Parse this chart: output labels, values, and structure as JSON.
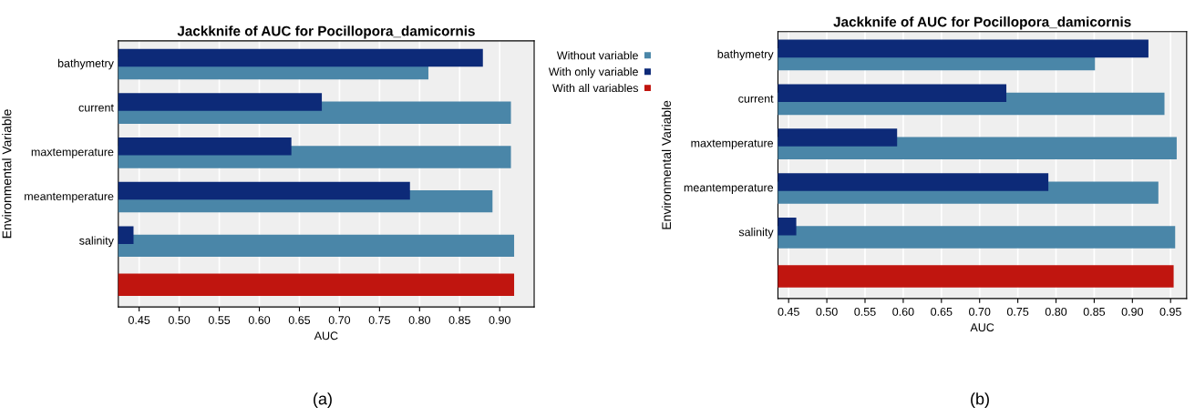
{
  "chart_data": [
    {
      "type": "bar",
      "orientation": "horizontal",
      "title": "Jackknife of AUC for Pocillopora_damicornis",
      "xlabel": "AUC",
      "ylabel": "Environmental Variable",
      "categories": [
        "bathymetry",
        "current",
        "maxtemperature",
        "meantemperature",
        "salinity",
        null
      ],
      "series": [
        {
          "name": "Without variable",
          "color": "#4a86a8",
          "values": [
            0.811,
            0.914,
            0.914,
            0.891,
            0.918,
            null
          ]
        },
        {
          "name": "With only variable",
          "color": "#0d2a78",
          "values": [
            0.879,
            0.678,
            0.64,
            0.788,
            0.443,
            null
          ]
        },
        {
          "name": "With all variables",
          "color": "#c0150f",
          "values": [
            null,
            null,
            null,
            null,
            null,
            0.918
          ]
        }
      ],
      "xlim": [
        0.424,
        0.943
      ],
      "xticks": [
        {
          "value": 0.45,
          "label": "0.45"
        },
        {
          "value": 0.5,
          "label": "0.50"
        },
        {
          "value": 0.55,
          "label": "0.55"
        },
        {
          "value": 0.6,
          "label": "0.60"
        },
        {
          "value": 0.65,
          "label": "0.65"
        },
        {
          "value": 0.7,
          "label": "0.70"
        },
        {
          "value": 0.75,
          "label": "0.75"
        },
        {
          "value": 0.8,
          "label": "0.80"
        },
        {
          "value": 0.85,
          "label": "0.85"
        },
        {
          "value": 0.9,
          "label": "0.90"
        }
      ],
      "grid": "x",
      "legend": "top right",
      "annotations": [
        "(a)"
      ]
    },
    {
      "type": "bar",
      "orientation": "horizontal",
      "title": "Jackknife of AUC for Pocillopora_damicornis",
      "xlabel": "AUC",
      "ylabel": "Environmental Variable",
      "categories": [
        "bathymetry",
        "current",
        "maxtemperature",
        "meantemperature",
        "salinity",
        null
      ],
      "series": [
        {
          "color": "#4a86a8",
          "values": [
            0.851,
            0.942,
            0.958,
            0.934,
            0.956,
            null
          ]
        },
        {
          "color": "#0d2a78",
          "values": [
            0.921,
            0.735,
            0.592,
            0.79,
            0.46,
            null
          ]
        },
        {
          "color": "#c0150f",
          "values": [
            null,
            null,
            null,
            null,
            null,
            0.954
          ]
        }
      ],
      "xlim": [
        0.436,
        0.971
      ],
      "xticks": [
        {
          "value": 0.45,
          "label": "0.45"
        },
        {
          "value": 0.5,
          "label": "0.50"
        },
        {
          "value": 0.55,
          "label": "0.55"
        },
        {
          "value": 0.6,
          "label": "0.60"
        },
        {
          "value": 0.65,
          "label": "0.65"
        },
        {
          "value": 0.7,
          "label": "0.70"
        },
        {
          "value": 0.75,
          "label": "0.75"
        },
        {
          "value": 0.8,
          "label": "0.80"
        },
        {
          "value": 0.85,
          "label": "0.85"
        },
        {
          "value": 0.9,
          "label": "0.90"
        },
        {
          "value": 0.95,
          "label": "0.95"
        }
      ],
      "grid": "x",
      "legend": false,
      "annotations": [
        "(b)"
      ]
    }
  ]
}
